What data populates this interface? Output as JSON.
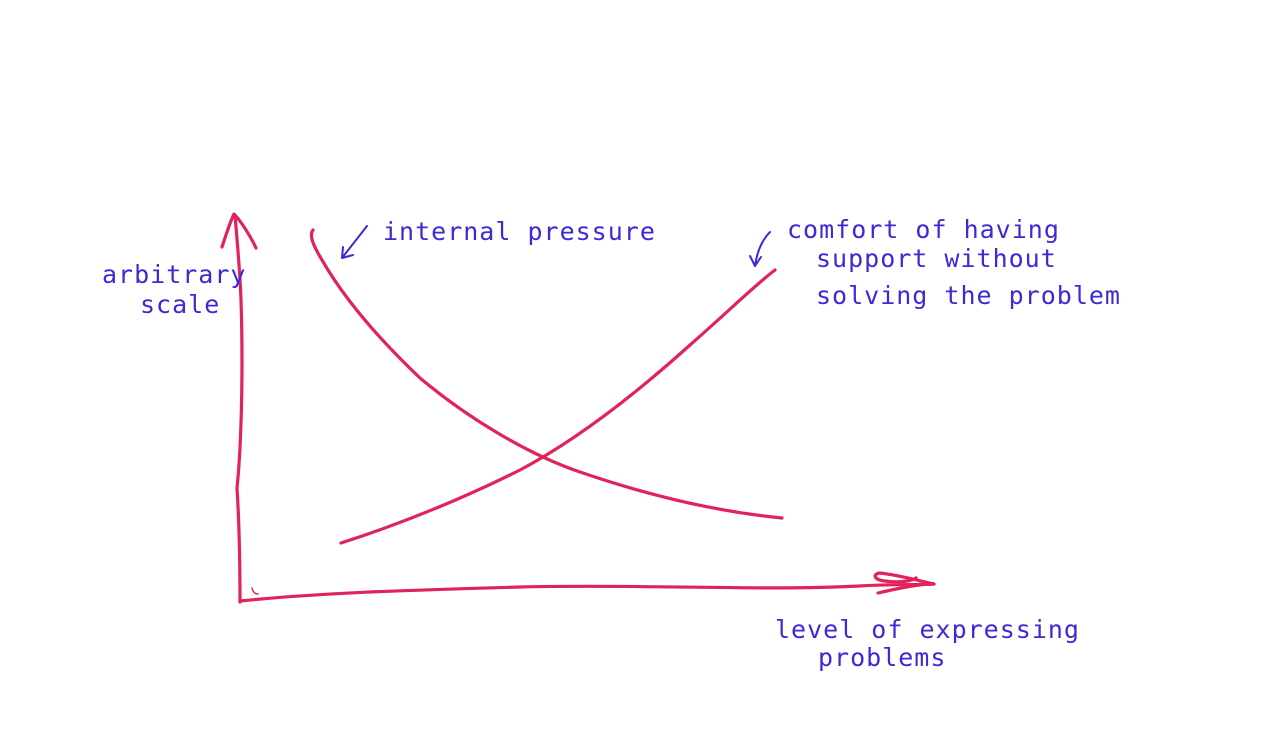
{
  "labels": {
    "y_axis_line1": "arbitrary",
    "y_axis_line2": "scale",
    "x_axis_line1": "level of expressing",
    "x_axis_line2": "problems",
    "curve_decreasing": "internal pressure",
    "curve_increasing_line1": "comfort of having",
    "curve_increasing_line2": "support without",
    "curve_increasing_line3": "solving the problem"
  },
  "colors": {
    "axes_and_curves": "#e0245a",
    "annotations": "#3b2ad6",
    "background": "#ffffff"
  }
}
